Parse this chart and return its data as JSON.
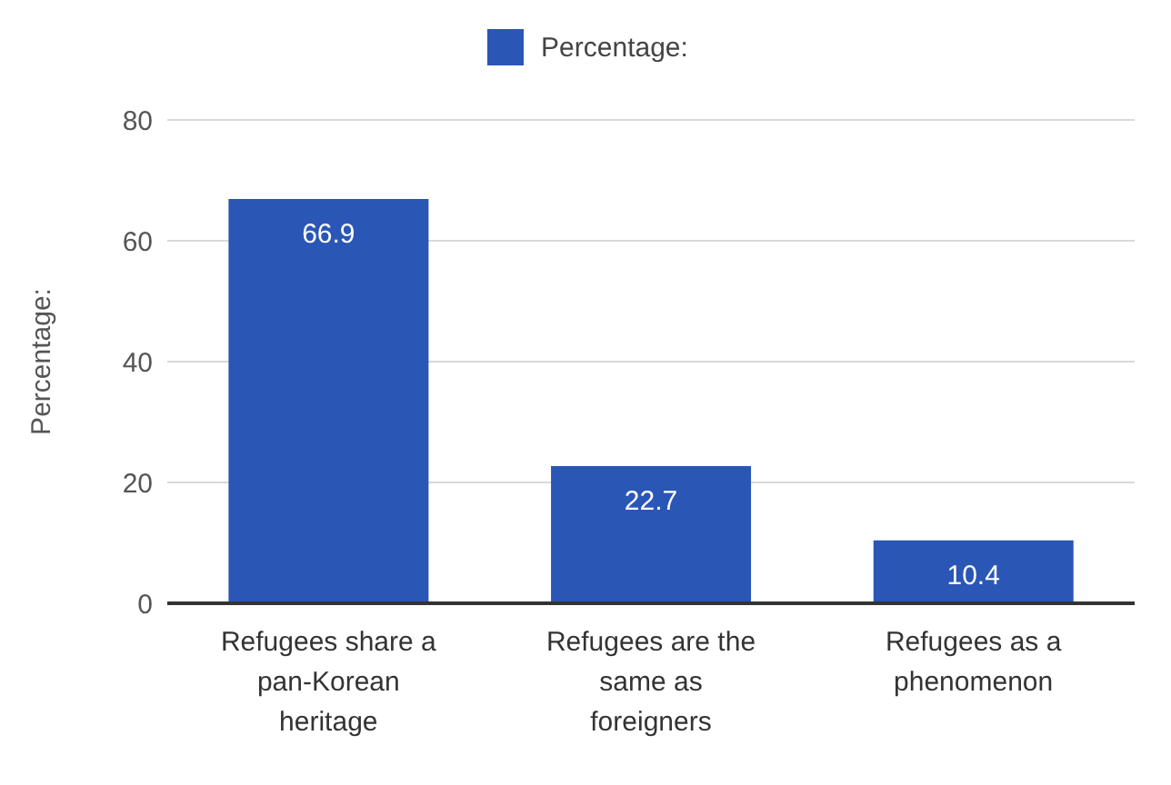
{
  "chart_data": {
    "type": "bar",
    "categories": [
      "Refugees share a pan-Korean heritage",
      "Refugees are the same as foreigners",
      "Refugees as a phenomenon"
    ],
    "series": [
      {
        "name": "Percentage:",
        "color": "#2a56b5",
        "values": [
          66.9,
          22.7,
          10.4
        ]
      }
    ],
    "ylabel": "Percentage:",
    "ylim": [
      0,
      80
    ],
    "yticks": [
      0,
      20,
      40,
      60,
      80
    ],
    "grid": "y",
    "legend": "top",
    "data_labels": true
  }
}
